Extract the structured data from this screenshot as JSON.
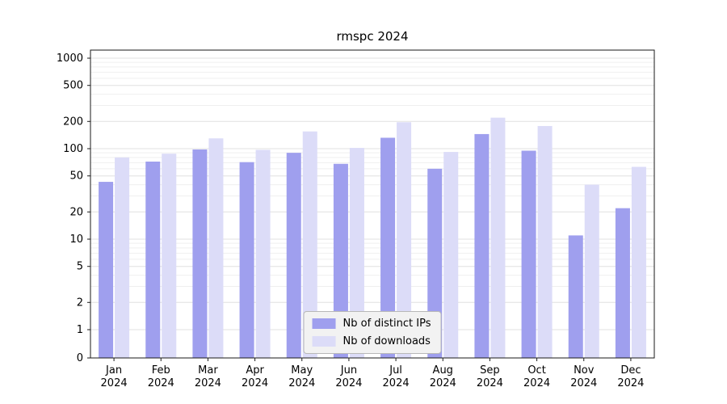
{
  "chart_data": {
    "type": "bar",
    "title": "rmspc 2024",
    "y_scale": "symlog",
    "y_ticks": [
      0,
      1,
      2,
      5,
      10,
      20,
      50,
      100,
      200,
      500,
      1000
    ],
    "ylim": [
      0,
      1000
    ],
    "grid": "horizontal major and minor, light gray",
    "legend_position": "lower center inside plot",
    "categories": [
      "Jan",
      "Feb",
      "Mar",
      "Apr",
      "May",
      "Jun",
      "Jul",
      "Aug",
      "Sep",
      "Oct",
      "Nov",
      "Dec"
    ],
    "x_tick_second_line": "2024",
    "series": [
      {
        "name": "Nb of distinct IPs",
        "color": "#9f9fee",
        "values": [
          43,
          72,
          98,
          71,
          90,
          68,
          132,
          60,
          145,
          95,
          11,
          22
        ]
      },
      {
        "name": "Nb of downloads",
        "color": "#dcdcf8",
        "values": [
          80,
          88,
          130,
          97,
          155,
          102,
          196,
          92,
          220,
          178,
          40,
          63
        ]
      }
    ]
  },
  "colors": {
    "frame": "#1a1a1a",
    "major_grid": "#e0e0e0",
    "minor_grid": "#efefef",
    "text": "#000000",
    "background": "#ffffff"
  }
}
